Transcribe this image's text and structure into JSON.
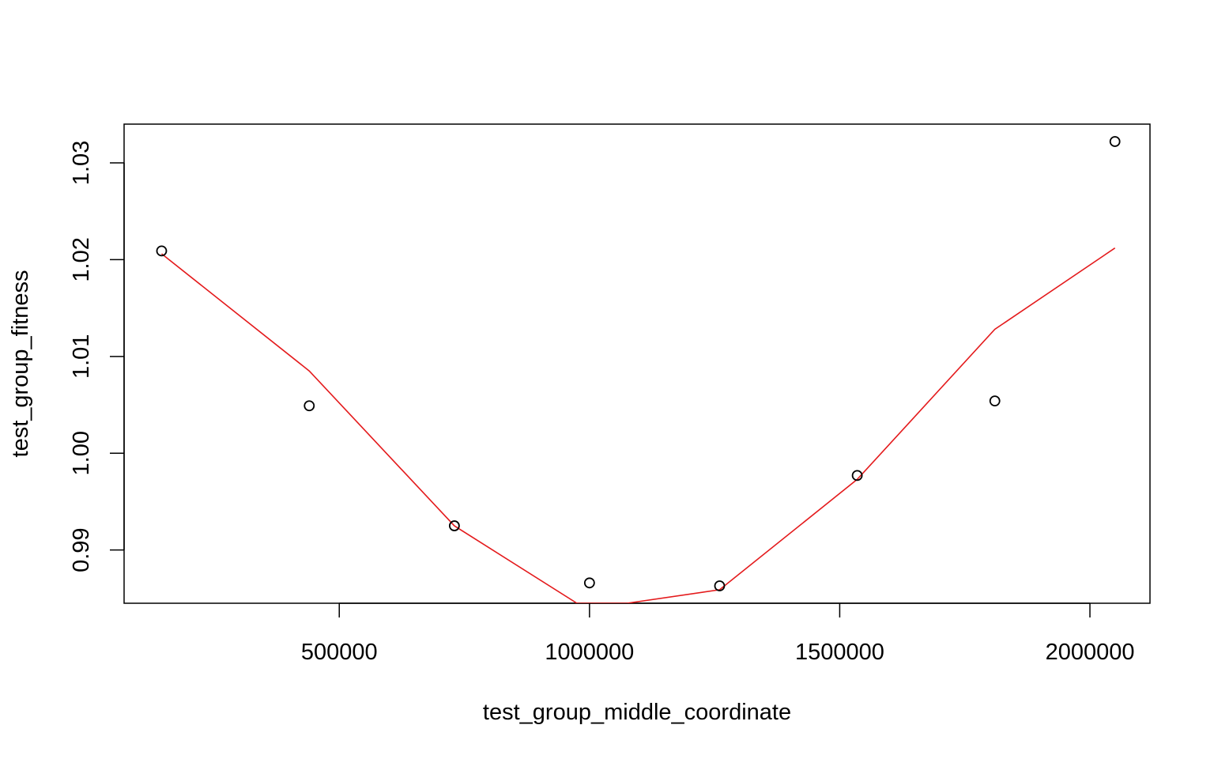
{
  "chart_data": {
    "type": "scatter",
    "title": "",
    "xlabel": "test_group_middle_coordinate",
    "ylabel": "test_group_fitness",
    "xlim": [
      70000,
      2120000
    ],
    "ylim": [
      0.9845,
      1.034
    ],
    "xticks": [
      500000,
      1000000,
      1500000,
      2000000
    ],
    "xtick_labels": [
      "500000",
      "1000000",
      "1500000",
      "2000000"
    ],
    "yticks": [
      0.99,
      1.0,
      1.01,
      1.02,
      1.03
    ],
    "ytick_labels": [
      "0.99",
      "1.00",
      "1.01",
      "1.02",
      "1.03"
    ],
    "grid": false,
    "series": [
      {
        "kind": "points",
        "marker": "open-circle",
        "color": "#000000",
        "x": [
          145000,
          440000,
          730000,
          1000000,
          1260000,
          1535000,
          1810000,
          2050000
        ],
        "y": [
          1.0209,
          1.0049,
          0.9925,
          0.9866,
          0.9863,
          0.9977,
          1.0054,
          1.0322
        ]
      },
      {
        "kind": "line",
        "color": "#e41a1c",
        "x": [
          145000,
          440000,
          730000,
          975000,
          1075000,
          1260000,
          1535000,
          1810000,
          2050000
        ],
        "y": [
          1.0206,
          1.0085,
          0.9925,
          0.9845,
          0.9845,
          0.9859,
          0.9973,
          1.0128,
          1.0212
        ]
      }
    ]
  }
}
